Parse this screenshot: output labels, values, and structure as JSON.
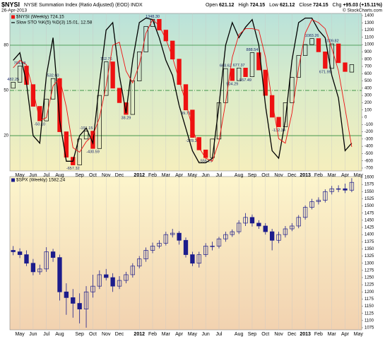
{
  "chart_data": [
    {
      "type": "candlestick",
      "title": "$NYSI",
      "subtitle": "NYSE Summation Index (Ratio Adjusted) (EOD) INDX",
      "date": "26-Apr-2013",
      "credit": "© StockCharts.com",
      "header_stats": [
        {
          "label": "Open",
          "value": "621.12"
        },
        {
          "label": "High",
          "value": "724.15"
        },
        {
          "label": "Low",
          "value": "621.12"
        },
        {
          "label": "Close",
          "value": "724.15"
        },
        {
          "label": "Chg",
          "value": "+95.03 (+15.11%)"
        }
      ],
      "categories": [
        null,
        "May",
        null,
        "Jun",
        null,
        "Jul",
        null,
        "Aug",
        null,
        null,
        "Sep",
        null,
        "Oct",
        null,
        "Nov",
        null,
        "Dec",
        null,
        null,
        "2012",
        null,
        "Feb",
        null,
        "Mar",
        null,
        "Apr",
        null,
        "May",
        null,
        "Jun",
        null,
        "Jul",
        null,
        null,
        "Aug",
        null,
        "Sep",
        null,
        "Oct",
        null,
        "Nov",
        null,
        "Dec",
        null,
        "2013",
        null,
        "Feb",
        null,
        "Mar",
        null,
        "Apr",
        null,
        "May"
      ],
      "ylim": [
        -739,
        1429
      ],
      "yticks": [
        1400,
        1300,
        1200,
        1100,
        1000,
        900,
        800,
        700,
        600,
        500,
        400,
        300,
        200,
        100,
        0,
        -100,
        -200,
        -300,
        -400,
        -500,
        -600,
        -700
      ],
      "y2lim": [
        -3.4,
        101.1
      ],
      "y2ticks": [
        20,
        50,
        80
      ],
      "series": [
        {
          "name": "$NYSI (Weekly) 724.15",
          "color": "#000000",
          "down_color": "#ee1111",
          "open": [
            400,
            482.25,
            704.68,
            450,
            150,
            -50.1,
            250,
            532.6,
            -200,
            -550,
            -657.32,
            -300,
            -191.15,
            -430.59,
            300,
            762.76,
            400,
            200,
            38.29,
            500,
            900,
            1250,
            1348.3,
            1200,
            1050,
            800,
            450,
            99.71,
            -278.2,
            -450,
            -556.29,
            -300,
            200,
            668.62,
            504.29,
            677.37,
            557.49,
            888.54,
            650,
            300,
            0,
            -132.34,
            200,
            550,
            850,
            1000,
            1083.26,
            900,
            671.99,
            1009.82,
            750,
            621.12,
            null
          ],
          "close": [
            482.25,
            704.68,
            450,
            150,
            -50.1,
            250,
            532.6,
            -200,
            -550,
            -657.32,
            -300,
            -191.15,
            -430.59,
            300,
            762.76,
            400,
            200,
            38.29,
            500,
            900,
            1250,
            1348.3,
            1200,
            1050,
            800,
            450,
            99.71,
            -278.2,
            -450,
            -556.29,
            -300,
            200,
            668.62,
            504.29,
            677.37,
            557.49,
            888.54,
            650,
            300,
            0,
            -132.34,
            200,
            550,
            850,
            1000,
            1083.26,
            900,
            671.99,
            1009.82,
            750,
            629.12,
            724.15,
            null
          ],
          "value_labels": [
            "482.25",
            "704.68",
            null,
            null,
            "-50.10",
            null,
            "532.60",
            null,
            null,
            "-657.32",
            null,
            "-191.15",
            "-430.59",
            null,
            "762.76",
            null,
            null,
            "38.29",
            null,
            null,
            null,
            "1348.30",
            null,
            null,
            null,
            null,
            "99.71",
            "-278.20",
            null,
            "-556.29",
            null,
            null,
            "668.62",
            "504.29",
            "677.37",
            "557.49",
            "888.54",
            null,
            null,
            null,
            "-132.34",
            null,
            null,
            null,
            null,
            "1083.26",
            null,
            "671.99",
            "1009.82",
            null,
            null,
            null,
            null
          ]
        },
        {
          "name": "Slow STO %K(5) %D(3) 15.01,",
          "type": "line",
          "axis": "y2",
          "color": "#000000",
          "values": [
            70,
            75,
            55,
            20,
            15,
            60,
            85,
            30,
            3,
            3,
            20,
            25,
            15,
            55,
            90,
            95,
            60,
            35,
            70,
            95,
            98,
            97,
            85,
            70,
            60,
            40,
            25,
            10,
            2,
            2,
            5,
            40,
            80,
            95,
            85,
            92,
            97,
            80,
            40,
            10,
            5,
            30,
            70,
            95,
            98,
            98,
            90,
            85,
            60,
            45,
            10,
            15.01,
            null
          ]
        },
        {
          "name": "12.58",
          "type": "line",
          "axis": "y2",
          "color": "#ee1111",
          "values": [
            65,
            70,
            67,
            50,
            30,
            32,
            53,
            58,
            39,
            12,
            9,
            16,
            20,
            32,
            53,
            80,
            82,
            63,
            55,
            67,
            88,
            97,
            93,
            84,
            72,
            57,
            42,
            25,
            12,
            5,
            3,
            16,
            42,
            72,
            87,
            91,
            91,
            90,
            72,
            43,
            18,
            15,
            35,
            65,
            88,
            97,
            95,
            91,
            78,
            63,
            38,
            12.58,
            null
          ]
        }
      ]
    },
    {
      "type": "candlestick",
      "categories": [
        null,
        "May",
        null,
        "Jun",
        null,
        "Jul",
        null,
        "Aug",
        null,
        null,
        "Sep",
        null,
        "Oct",
        null,
        "Nov",
        null,
        "Dec",
        null,
        null,
        "2012",
        null,
        "Feb",
        null,
        "Mar",
        null,
        "Apr",
        null,
        "May",
        null,
        "Jun",
        null,
        "Jul",
        null,
        null,
        "Aug",
        null,
        "Sep",
        null,
        "Oct",
        null,
        "Nov",
        null,
        "Dec",
        null,
        "2013",
        null,
        "Feb",
        null,
        "Mar",
        null,
        "Apr",
        null,
        "May"
      ],
      "ylim": [
        1067.6,
        1602.5
      ],
      "yticks": [
        1600,
        1575,
        1550,
        1525,
        1500,
        1475,
        1450,
        1425,
        1400,
        1375,
        1350,
        1325,
        1300,
        1275,
        1250,
        1225,
        1200,
        1175,
        1150,
        1125,
        1100,
        1075
      ],
      "series": [
        {
          "name": "$SPX (Weekly) 1582.24",
          "color": "#1c1c8c",
          "down_color": "#1c1c8c",
          "open": [
            1345,
            1340,
            1330,
            1300,
            1270,
            1280,
            1340,
            1320,
            1200,
            1180,
            1160,
            1140,
            1200,
            1220,
            1260,
            1250,
            1220,
            1240,
            1260,
            1290,
            1315,
            1345,
            1360,
            1370,
            1400,
            1405,
            1380,
            1330,
            1300,
            1330,
            1360,
            1360,
            1385,
            1400,
            1410,
            1440,
            1460,
            1440,
            1430,
            1410,
            1380,
            1400,
            1420,
            1430,
            1460,
            1495,
            1515,
            1520,
            1550,
            1560,
            1560,
            1555,
            null
          ],
          "high": [
            1360,
            1352,
            1345,
            1315,
            1295,
            1356,
            1350,
            1330,
            1230,
            1210,
            1195,
            1220,
            1260,
            1275,
            1280,
            1265,
            1255,
            1270,
            1300,
            1325,
            1355,
            1372,
            1380,
            1410,
            1420,
            1412,
            1390,
            1340,
            1340,
            1370,
            1375,
            1392,
            1410,
            1418,
            1450,
            1475,
            1470,
            1450,
            1440,
            1420,
            1410,
            1430,
            1440,
            1468,
            1502,
            1525,
            1530,
            1558,
            1570,
            1572,
            1578,
            1597,
            null
          ],
          "low": [
            1328,
            1318,
            1290,
            1258,
            1260,
            1270,
            1305,
            1170,
            1120,
            1110,
            1090,
            1075,
            1180,
            1210,
            1240,
            1200,
            1210,
            1230,
            1250,
            1282,
            1305,
            1335,
            1352,
            1362,
            1390,
            1365,
            1320,
            1290,
            1285,
            1322,
            1345,
            1352,
            1375,
            1392,
            1402,
            1430,
            1428,
            1420,
            1400,
            1345,
            1370,
            1390,
            1412,
            1422,
            1452,
            1488,
            1505,
            1512,
            1540,
            1548,
            1545,
            1548,
            null
          ],
          "close": [
            1340,
            1330,
            1300,
            1270,
            1280,
            1340,
            1320,
            1200,
            1180,
            1160,
            1140,
            1200,
            1220,
            1260,
            1250,
            1220,
            1240,
            1260,
            1290,
            1315,
            1345,
            1360,
            1370,
            1400,
            1405,
            1380,
            1330,
            1300,
            1330,
            1360,
            1360,
            1385,
            1400,
            1410,
            1440,
            1460,
            1440,
            1430,
            1410,
            1380,
            1400,
            1420,
            1430,
            1460,
            1495,
            1515,
            1520,
            1550,
            1560,
            1560,
            1555,
            1582.24,
            null
          ]
        }
      ]
    }
  ]
}
